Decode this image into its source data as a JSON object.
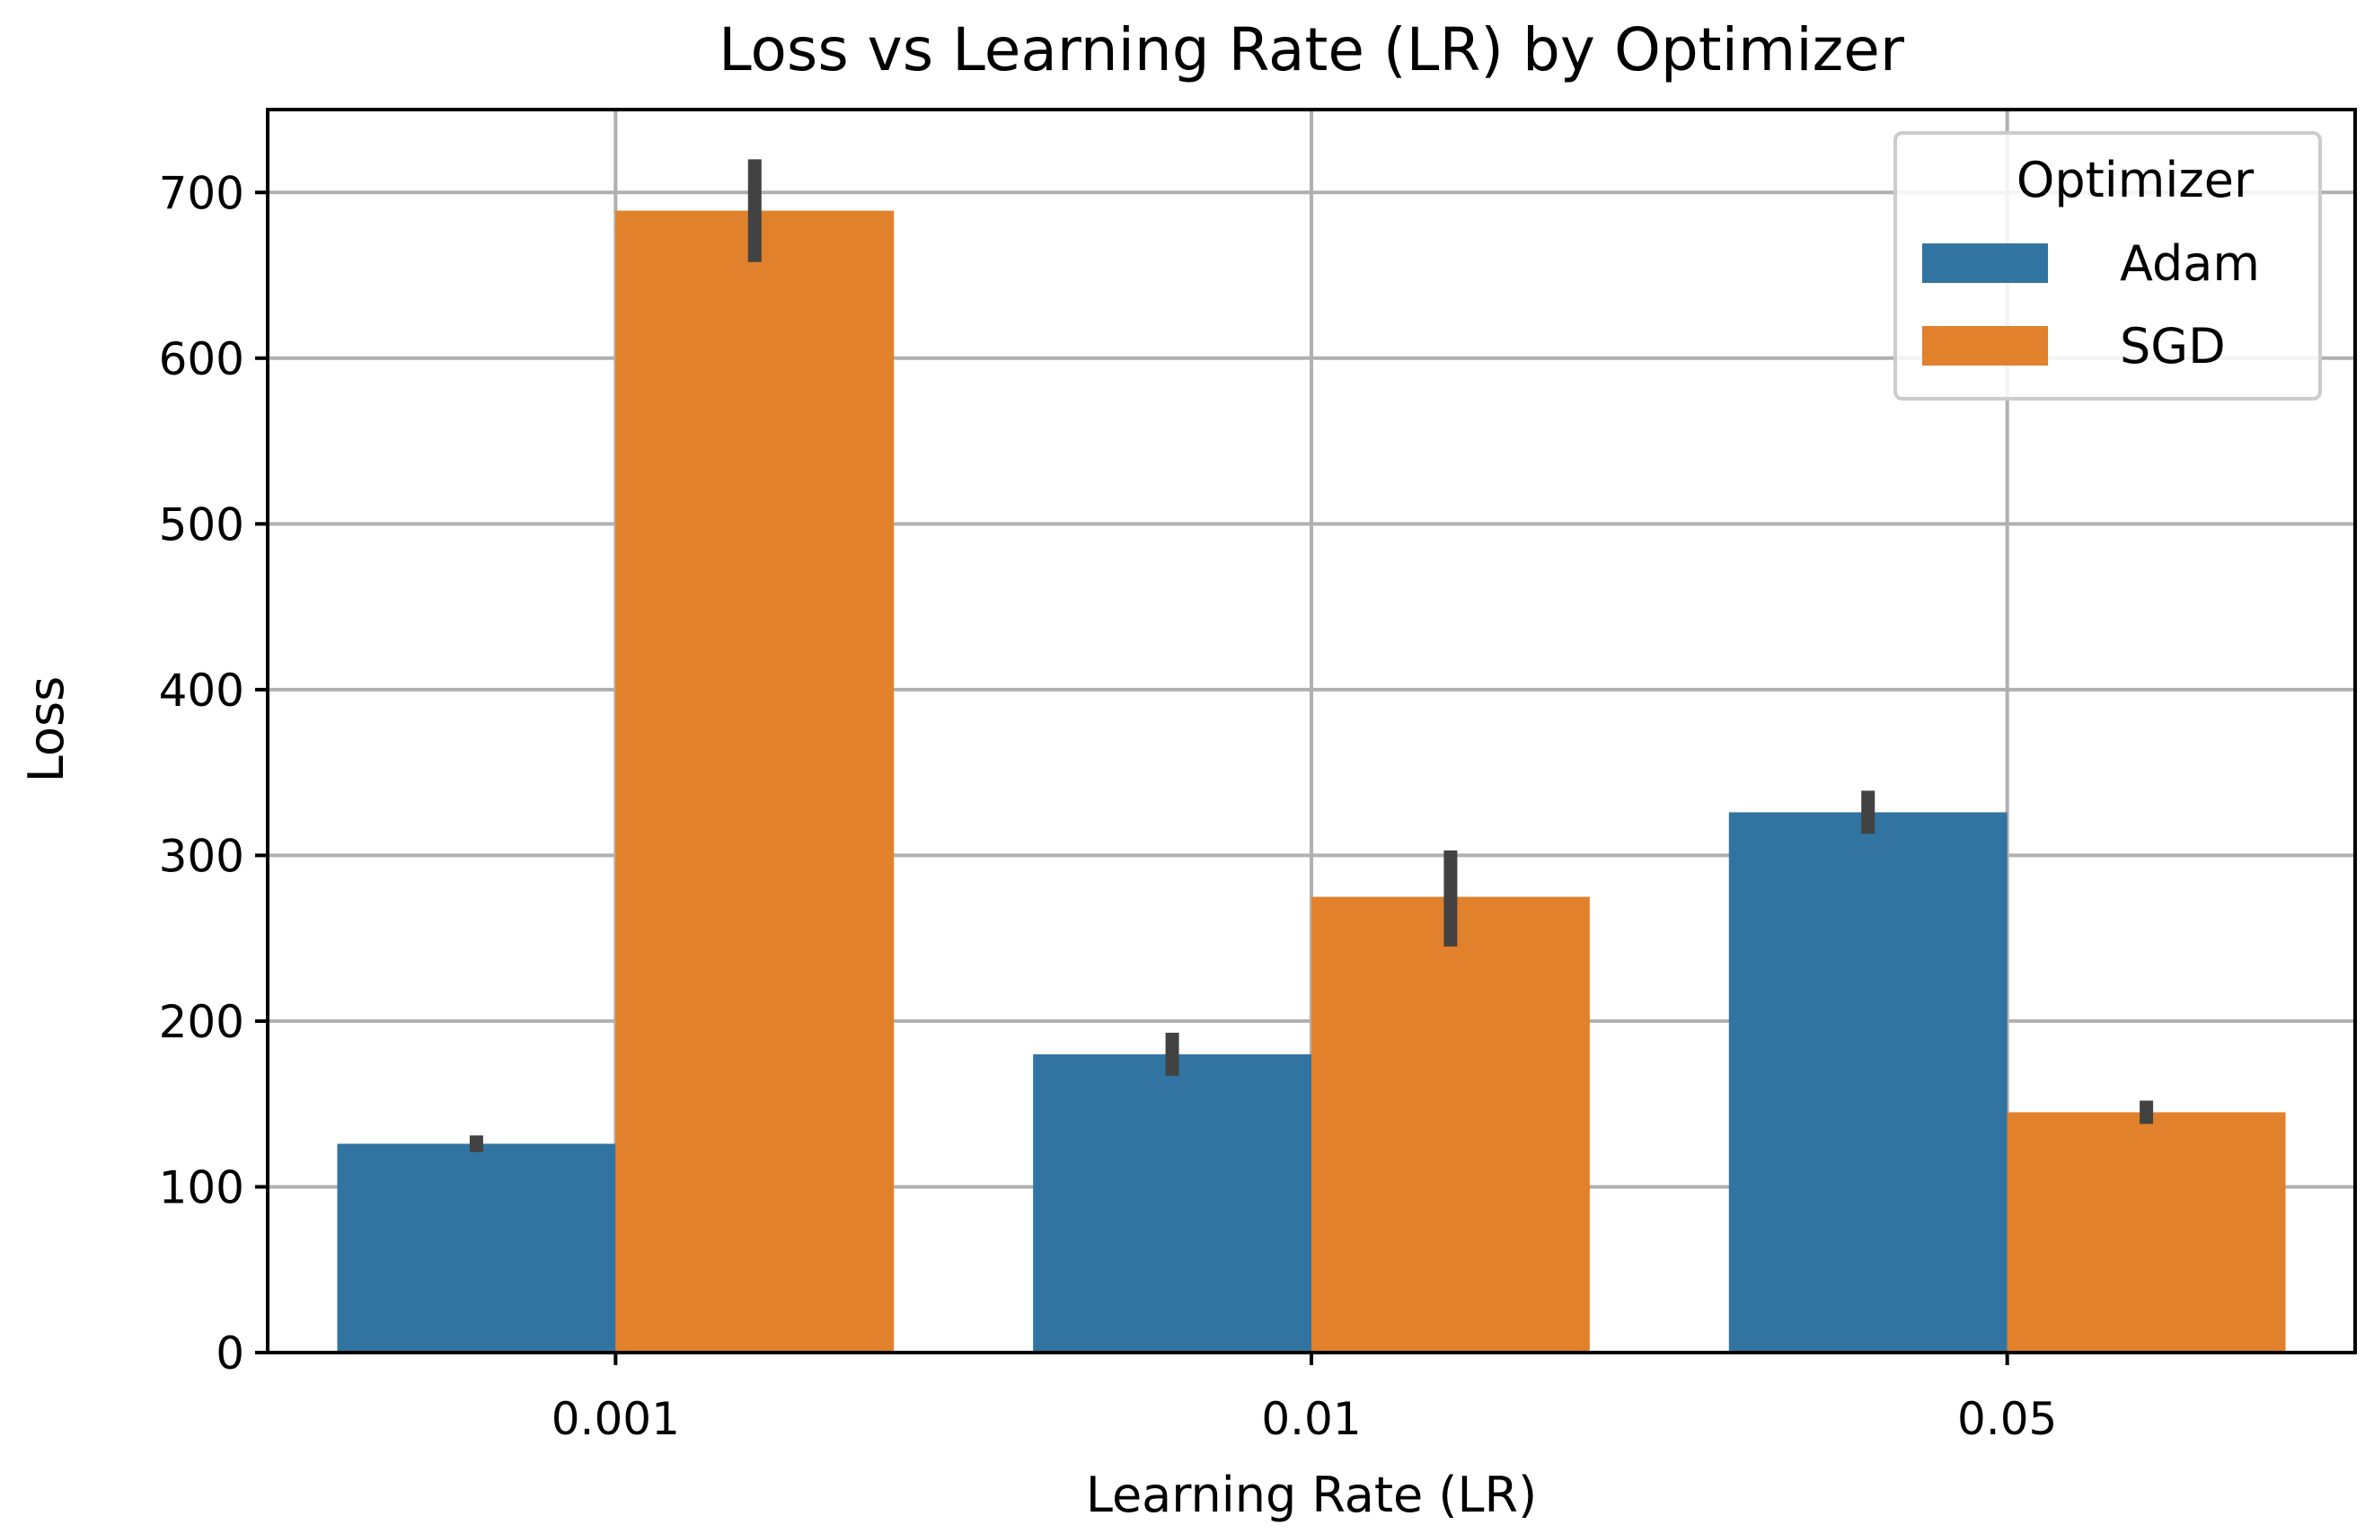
{
  "chart_data": {
    "type": "bar",
    "title": "Loss vs Learning Rate (LR) by Optimizer",
    "xlabel": "Learning Rate (LR)",
    "ylabel": "Loss",
    "categories": [
      "0.001",
      "0.01",
      "0.05"
    ],
    "ylim": [
      0,
      750
    ],
    "yticks": [
      0,
      100,
      200,
      300,
      400,
      500,
      600,
      700
    ],
    "grid": true,
    "legend": {
      "title": "Optimizer",
      "position": "top-right"
    },
    "series": [
      {
        "name": "Adam",
        "color": "#3274a1",
        "values": [
          126,
          180,
          326
        ],
        "error_low": [
          121,
          167,
          313
        ],
        "error_high": [
          131,
          193,
          339
        ]
      },
      {
        "name": "SGD",
        "color": "#e1812c",
        "values": [
          689,
          275,
          145
        ],
        "error_low": [
          658,
          245,
          138
        ],
        "error_high": [
          720,
          303,
          152
        ]
      }
    ],
    "error_bar_color": "#424242"
  }
}
